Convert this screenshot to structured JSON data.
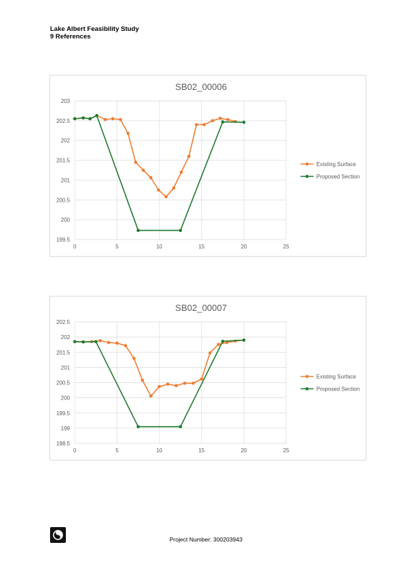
{
  "header": {
    "title": "Lake Albert Feasibility Study",
    "section": "9 References"
  },
  "footer": {
    "project_number": "Project Number: 300203943",
    "logo_icon": "company-logo-icon"
  },
  "colors": {
    "existing_surface": "#ed7d31",
    "proposed_section": "#1e7a2e",
    "grid": "#d9d9d9",
    "axis_text": "#595959"
  },
  "chart_data": [
    {
      "type": "line",
      "title": "SB02_00006",
      "xlabel": "",
      "ylabel": "",
      "xlim": [
        0,
        25
      ],
      "ylim": [
        199.5,
        203
      ],
      "x_ticks": [
        0,
        5,
        10,
        15,
        20,
        25
      ],
      "y_ticks": [
        199.5,
        200,
        200.5,
        201,
        201.5,
        202,
        202.5,
        203
      ],
      "y_tick_labels": [
        "199.5",
        "200",
        "200.5",
        "201",
        "201.5",
        "202",
        "202.5",
        "203"
      ],
      "grid": "vertical and horizontal",
      "legend": "right",
      "series": [
        {
          "name": "Existing Surface",
          "x": [
            0,
            1,
            1.8,
            2.6,
            3.6,
            4.5,
            5.4,
            6.3,
            7.2,
            8.1,
            9.0,
            9.9,
            10.8,
            11.7,
            12.6,
            13.5,
            14.4,
            15.3,
            16.3,
            17.2,
            18.1,
            19.0
          ],
          "y": [
            202.55,
            202.57,
            202.55,
            202.63,
            202.53,
            202.55,
            202.53,
            202.18,
            201.45,
            201.25,
            201.06,
            200.75,
            200.58,
            200.8,
            201.2,
            201.6,
            202.4,
            202.4,
            202.5,
            202.56,
            202.53,
            202.48
          ]
        },
        {
          "name": "Proposed Section",
          "x": [
            0,
            1,
            1.8,
            2.6,
            7.5,
            12.5,
            17.5,
            20
          ],
          "y": [
            202.55,
            202.57,
            202.55,
            202.63,
            199.73,
            199.73,
            202.47,
            202.46
          ]
        }
      ]
    },
    {
      "type": "line",
      "title": "SB02_00007",
      "xlabel": "",
      "ylabel": "",
      "xlim": [
        0,
        25
      ],
      "ylim": [
        198.5,
        202.5
      ],
      "x_ticks": [
        0,
        5,
        10,
        15,
        20,
        25
      ],
      "y_ticks": [
        198.5,
        199,
        199.5,
        200,
        200.5,
        201,
        201.5,
        202,
        202.5
      ],
      "y_tick_labels": [
        "198.5",
        "199",
        "199.5",
        "200",
        "200.5",
        "201",
        "201.5",
        "202",
        "202.5"
      ],
      "grid": "vertical and horizontal",
      "legend": "right",
      "series": [
        {
          "name": "Existing Surface",
          "x": [
            0,
            1,
            2,
            3,
            4,
            5,
            6,
            7,
            8,
            9,
            10,
            11,
            12,
            13,
            14,
            15,
            16,
            17,
            18,
            19,
            20
          ],
          "y": [
            201.85,
            201.84,
            201.85,
            201.88,
            201.82,
            201.8,
            201.72,
            201.3,
            200.58,
            200.06,
            200.37,
            200.45,
            200.4,
            200.48,
            200.48,
            200.62,
            201.48,
            201.76,
            201.82,
            201.87,
            201.9
          ]
        },
        {
          "name": "Proposed Section",
          "x": [
            0,
            1,
            2.5,
            7.5,
            12.5,
            17.5,
            20
          ],
          "y": [
            201.85,
            201.84,
            201.85,
            199.05,
            199.05,
            201.86,
            201.9
          ]
        }
      ]
    }
  ]
}
